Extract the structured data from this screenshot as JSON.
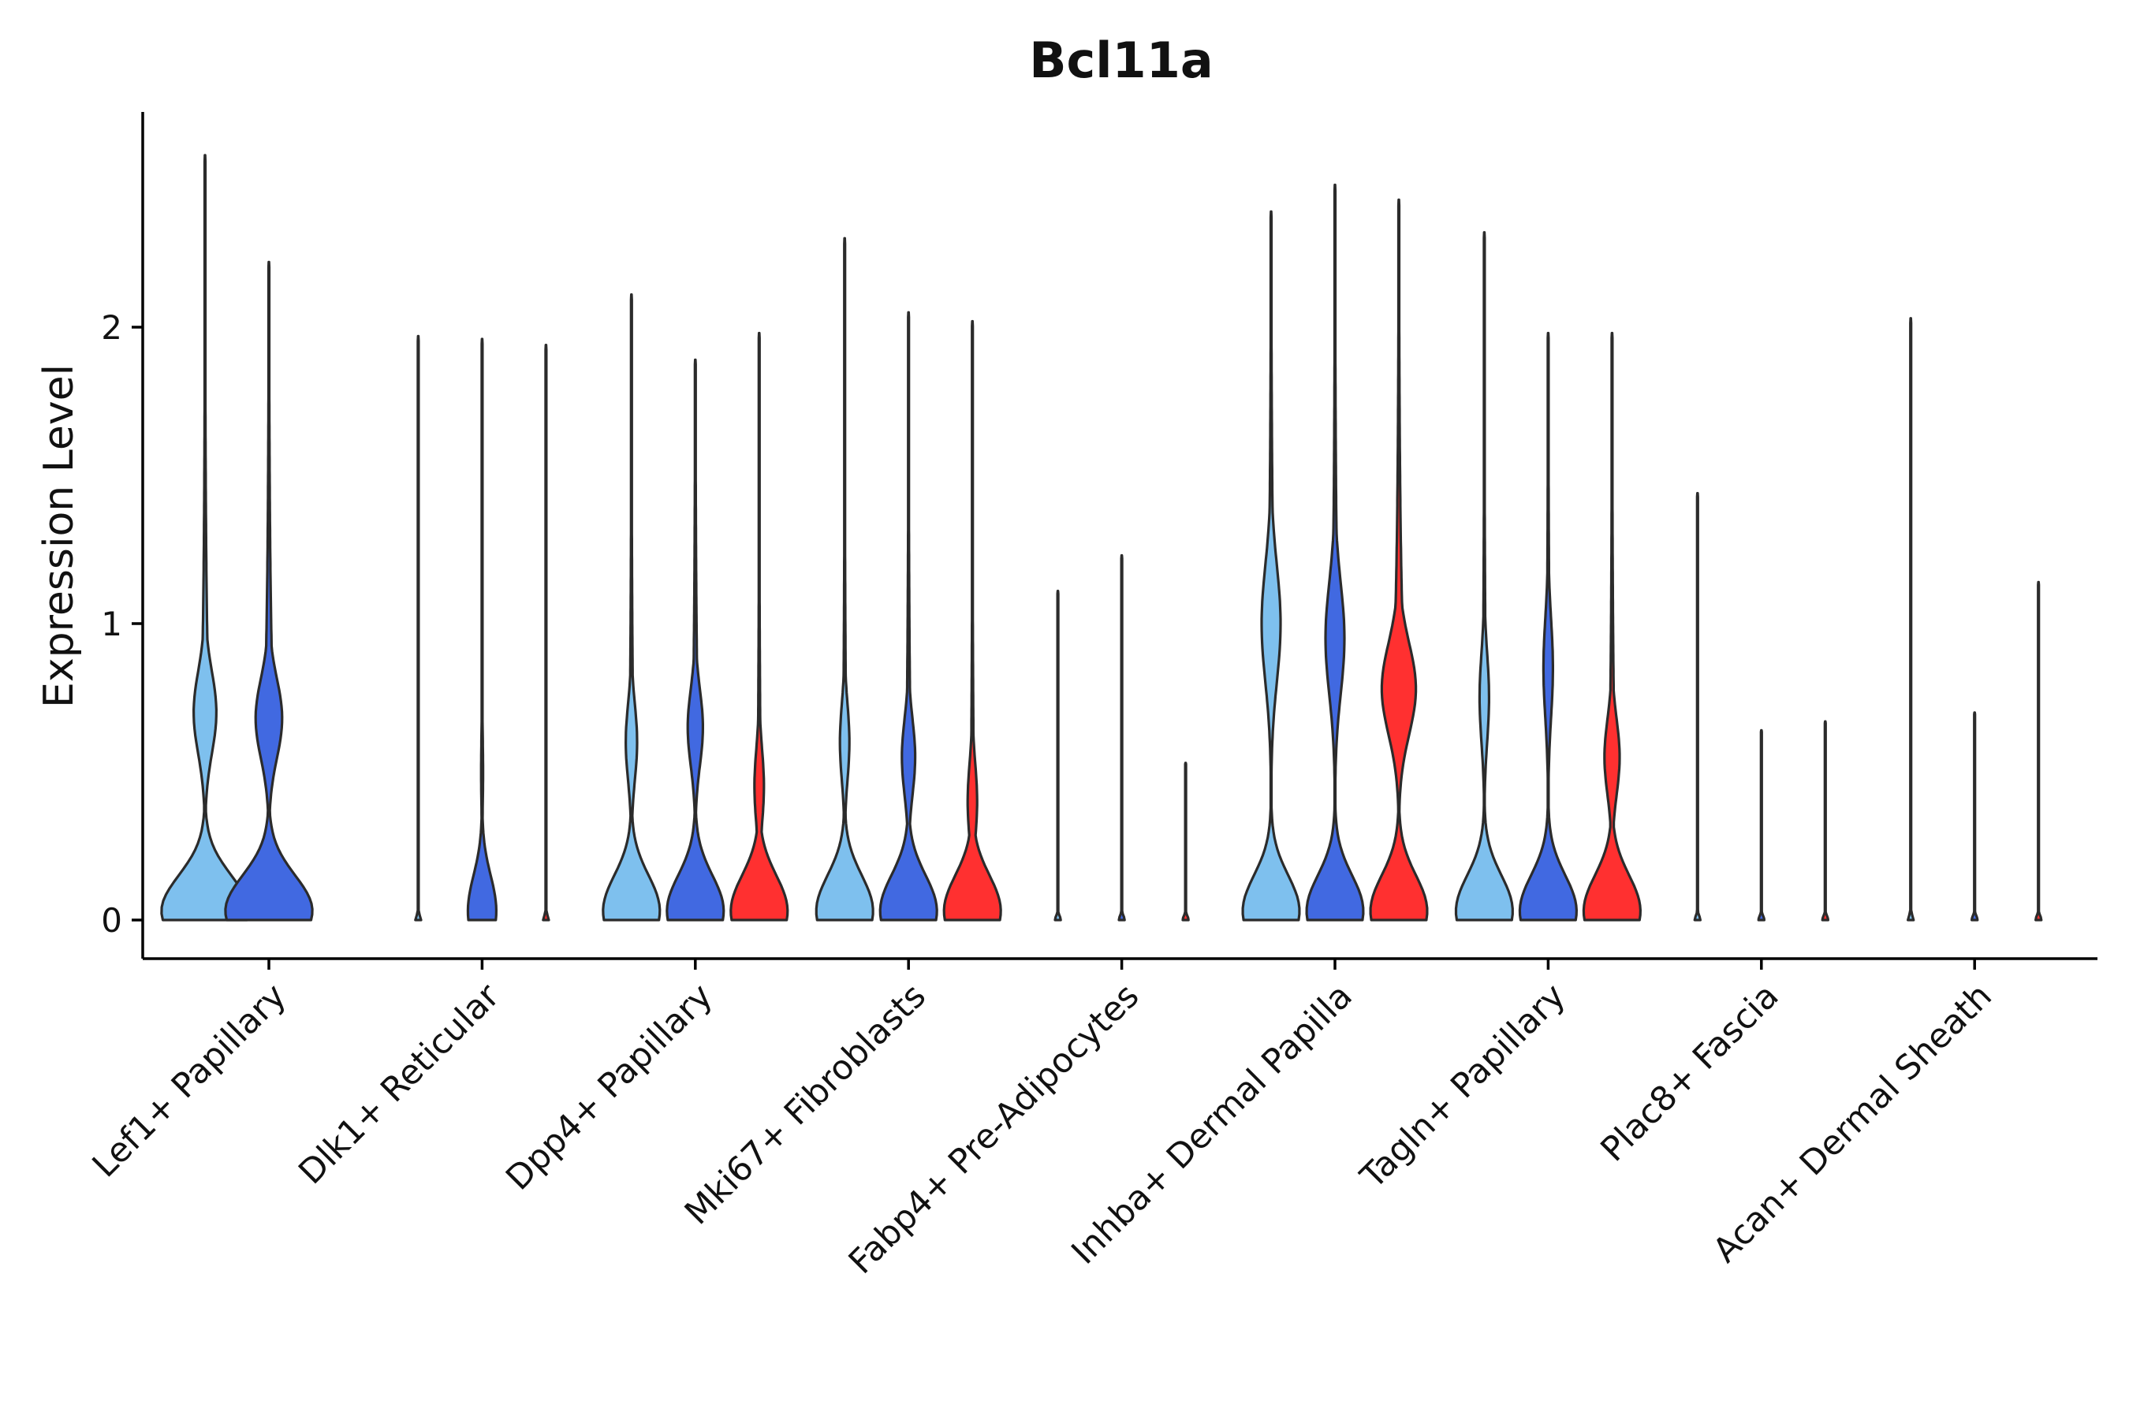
{
  "chart_data": {
    "type": "violin",
    "title": "Bcl11a",
    "xlabel": "",
    "ylabel": "Expression Level",
    "ylim": [
      -0.13,
      2.75
    ],
    "yticks": [
      0,
      1,
      2
    ],
    "grid": false,
    "legend": "none",
    "series_colors": [
      "#7ec0ee",
      "#4169e1",
      "#ff3030"
    ],
    "categories": [
      "Lef1+ Papillary",
      "Dlk1+ Reticular",
      "Dpp4+ Papillary",
      "Mki67+ Fibroblasts",
      "Fabp4+ Pre-Adipocytes",
      "Inhba+ Dermal Papilla",
      "Tagln+ Papillary",
      "Plac8+ Fascia",
      "Acan+ Dermal Sheath"
    ],
    "violins": [
      {
        "category": 0,
        "series": 0,
        "max": 2.58,
        "zero_width": 0.46,
        "upper_mode": 0.7,
        "upper_width": 0.12
      },
      {
        "category": 0,
        "series": 1,
        "max": 2.22,
        "zero_width": 0.46,
        "upper_mode": 0.68,
        "upper_width": 0.14
      },
      {
        "category": 1,
        "series": 0,
        "max": 1.97,
        "zero_width": 0.03,
        "upper_mode": 0.0,
        "upper_width": 0.0
      },
      {
        "category": 1,
        "series": 1,
        "max": 1.96,
        "zero_width": 0.15,
        "upper_mode": 0.5,
        "upper_width": 0.01
      },
      {
        "category": 1,
        "series": 2,
        "max": 1.94,
        "zero_width": 0.03,
        "upper_mode": 0.0,
        "upper_width": 0.0
      },
      {
        "category": 2,
        "series": 0,
        "max": 2.11,
        "zero_width": 0.3,
        "upper_mode": 0.6,
        "upper_width": 0.06
      },
      {
        "category": 2,
        "series": 1,
        "max": 1.89,
        "zero_width": 0.3,
        "upper_mode": 0.65,
        "upper_width": 0.08
      },
      {
        "category": 2,
        "series": 2,
        "max": 1.98,
        "zero_width": 0.3,
        "upper_mode": 0.45,
        "upper_width": 0.05
      },
      {
        "category": 3,
        "series": 0,
        "max": 2.3,
        "zero_width": 0.3,
        "upper_mode": 0.6,
        "upper_width": 0.05
      },
      {
        "category": 3,
        "series": 1,
        "max": 2.05,
        "zero_width": 0.3,
        "upper_mode": 0.55,
        "upper_width": 0.07
      },
      {
        "category": 3,
        "series": 2,
        "max": 2.02,
        "zero_width": 0.3,
        "upper_mode": 0.4,
        "upper_width": 0.05
      },
      {
        "category": 4,
        "series": 0,
        "max": 1.11,
        "zero_width": 0.03,
        "upper_mode": 0.0,
        "upper_width": 0.0
      },
      {
        "category": 4,
        "series": 1,
        "max": 1.23,
        "zero_width": 0.03,
        "upper_mode": 0.0,
        "upper_width": 0.0
      },
      {
        "category": 4,
        "series": 2,
        "max": 0.53,
        "zero_width": 0.03,
        "upper_mode": 0.0,
        "upper_width": 0.0
      },
      {
        "category": 5,
        "series": 0,
        "max": 2.39,
        "zero_width": 0.3,
        "upper_mode": 1.0,
        "upper_width": 0.1
      },
      {
        "category": 5,
        "series": 1,
        "max": 2.48,
        "zero_width": 0.3,
        "upper_mode": 0.95,
        "upper_width": 0.1
      },
      {
        "category": 5,
        "series": 2,
        "max": 2.43,
        "zero_width": 0.3,
        "upper_mode": 0.78,
        "upper_width": 0.18
      },
      {
        "category": 6,
        "series": 0,
        "max": 2.32,
        "zero_width": 0.3,
        "upper_mode": 0.75,
        "upper_width": 0.05
      },
      {
        "category": 6,
        "series": 1,
        "max": 1.98,
        "zero_width": 0.3,
        "upper_mode": 0.85,
        "upper_width": 0.05
      },
      {
        "category": 6,
        "series": 2,
        "max": 1.98,
        "zero_width": 0.3,
        "upper_mode": 0.55,
        "upper_width": 0.08
      },
      {
        "category": 7,
        "series": 0,
        "max": 1.44,
        "zero_width": 0.03,
        "upper_mode": 0.0,
        "upper_width": 0.0
      },
      {
        "category": 7,
        "series": 1,
        "max": 0.64,
        "zero_width": 0.03,
        "upper_mode": 0.0,
        "upper_width": 0.0
      },
      {
        "category": 7,
        "series": 2,
        "max": 0.67,
        "zero_width": 0.03,
        "upper_mode": 0.0,
        "upper_width": 0.0
      },
      {
        "category": 8,
        "series": 0,
        "max": 2.03,
        "zero_width": 0.03,
        "upper_mode": 0.0,
        "upper_width": 0.0
      },
      {
        "category": 8,
        "series": 1,
        "max": 0.7,
        "zero_width": 0.03,
        "upper_mode": 0.0,
        "upper_width": 0.0
      },
      {
        "category": 8,
        "series": 2,
        "max": 1.14,
        "zero_width": 0.03,
        "upper_mode": 0.0,
        "upper_width": 0.0
      }
    ]
  }
}
